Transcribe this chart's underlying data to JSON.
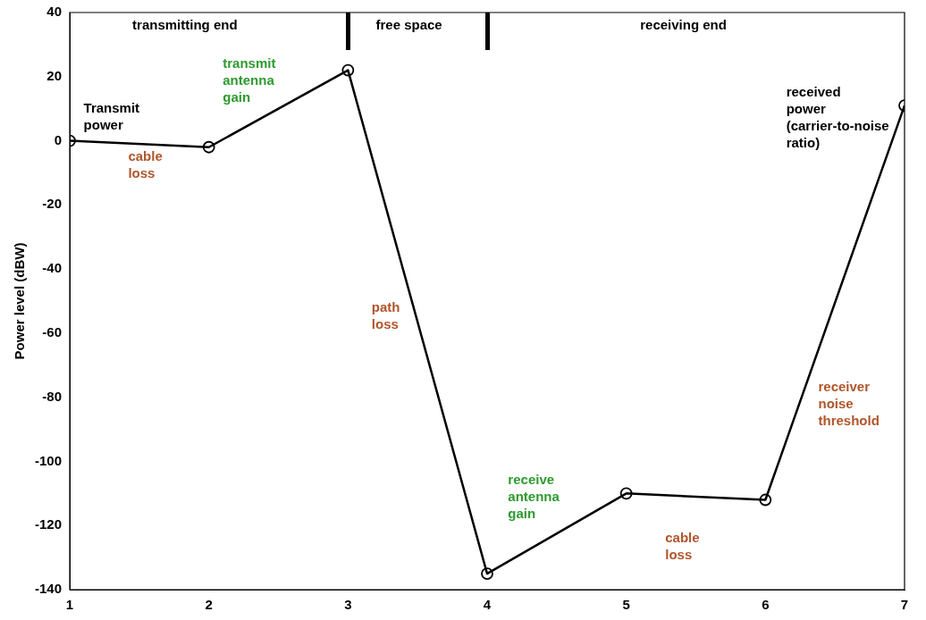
{
  "chart_data": {
    "type": "line",
    "ylabel": "Power level (dBW)",
    "x": [
      1,
      2,
      3,
      4,
      5,
      6,
      7
    ],
    "series": [
      {
        "color": "#000000",
        "values": [
          0,
          -2,
          22,
          -135,
          -110,
          -112,
          11
        ]
      }
    ],
    "xlim": [
      1,
      7
    ],
    "xticks": [
      1,
      2,
      3,
      4,
      5,
      6,
      7
    ],
    "ylim": [
      -140,
      40
    ],
    "yticks": [
      -140,
      -120,
      -100,
      -80,
      -60,
      -40,
      -20,
      0,
      20,
      40
    ],
    "grid": false,
    "legend": false,
    "marker": "circle",
    "line_style": "solid",
    "annotations": [
      "transmitting end",
      "free space",
      "receiving end",
      "Transmit\npower",
      "cable\nloss",
      "transmit\nantenna\ngain",
      "path\nloss",
      "receive\nantenna\ngain",
      "cable\nloss",
      "receiver\nnoise\nthreshold",
      "received\npower\n(carrier-to-noise\nratio)"
    ]
  }
}
